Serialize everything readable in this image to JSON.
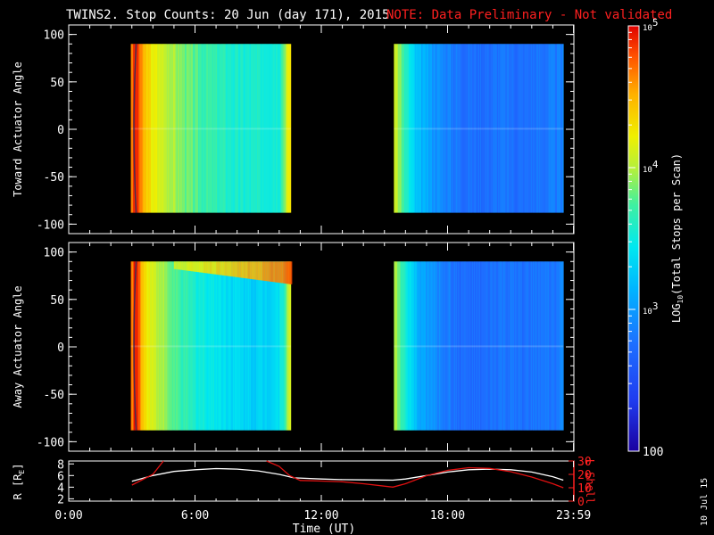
{
  "title": "TWINS2. Stop Counts: 20 Jun (day 171), 2015",
  "note": "NOTE: Data Preliminary - Not validated",
  "date_stamp": "10 Jul 15",
  "colors": {
    "background": "#000000",
    "axes": "#ffffff",
    "note": "#ff2020",
    "lshell": "#e01010",
    "r_line": "#ffffff"
  },
  "chart_data": [
    {
      "type": "heatmap",
      "name": "toward",
      "ylabel": "Toward Actuator Angle",
      "xlim_hours": [
        0,
        24
      ],
      "ylim": [
        -110,
        110
      ],
      "yticks": [
        100,
        50,
        0,
        -50,
        -100
      ],
      "angle_range": [
        -88,
        90
      ],
      "data_blocks_hours": [
        [
          2.95,
          10.55
        ],
        [
          15.45,
          23.5
        ]
      ],
      "color_log10": [
        [
          3.0,
          4.7
        ],
        [
          3.12,
          4.95
        ],
        [
          3.25,
          4.85
        ],
        [
          3.5,
          4.5
        ],
        [
          4.0,
          4.2
        ],
        [
          5.0,
          3.95
        ],
        [
          6.0,
          3.75
        ],
        [
          7.0,
          3.65
        ],
        [
          8.0,
          3.55
        ],
        [
          9.0,
          3.55
        ],
        [
          10.0,
          3.6
        ],
        [
          10.5,
          4.3
        ],
        [
          15.5,
          4.1
        ],
        [
          16.0,
          3.6
        ],
        [
          16.5,
          3.2
        ],
        [
          17.5,
          2.95
        ],
        [
          18.5,
          2.8
        ],
        [
          19.5,
          2.75
        ],
        [
          20.5,
          2.8
        ],
        [
          21.5,
          2.75
        ],
        [
          22.5,
          2.8
        ],
        [
          23.5,
          2.85
        ]
      ]
    },
    {
      "type": "heatmap",
      "name": "away",
      "ylabel": "Away Actuator Angle",
      "xlim_hours": [
        0,
        24
      ],
      "ylim": [
        -110,
        110
      ],
      "yticks": [
        100,
        50,
        0,
        -50,
        -100
      ],
      "angle_range": [
        -88,
        90
      ],
      "data_blocks_hours": [
        [
          2.95,
          10.55
        ],
        [
          15.45,
          23.5
        ]
      ],
      "color_log10": [
        [
          3.0,
          4.7
        ],
        [
          3.12,
          4.95
        ],
        [
          3.25,
          4.85
        ],
        [
          3.5,
          4.4
        ],
        [
          4.0,
          4.1
        ],
        [
          5.0,
          3.75
        ],
        [
          6.0,
          3.55
        ],
        [
          7.0,
          3.45
        ],
        [
          8.0,
          3.35
        ],
        [
          9.0,
          3.3
        ],
        [
          10.0,
          3.4
        ],
        [
          10.5,
          4.1
        ],
        [
          15.5,
          4.0
        ],
        [
          16.0,
          3.5
        ],
        [
          16.5,
          3.15
        ],
        [
          17.5,
          2.9
        ],
        [
          18.5,
          2.75
        ],
        [
          19.5,
          2.7
        ],
        [
          20.5,
          2.8
        ],
        [
          21.5,
          2.75
        ],
        [
          22.5,
          2.8
        ],
        [
          23.5,
          2.85
        ]
      ],
      "enhancement": {
        "hours": [
          5.0,
          10.5
        ],
        "angle": [
          58,
          90
        ],
        "log10_peak": 4.75
      }
    },
    {
      "type": "line",
      "name": "orbit",
      "xlabel": "Time (UT)",
      "xlim_hours": [
        0,
        24
      ],
      "xticks": [
        "0:00",
        "6:00",
        "12:00",
        "18:00",
        "23:59"
      ],
      "xtick_hours": [
        0,
        6,
        12,
        18,
        23.983
      ],
      "left_axis": {
        "label": "R [R",
        "label_sub": "E",
        "label_end": "]",
        "ylim": [
          1.6,
          8.5
        ],
        "yticks": [
          "8",
          "6",
          "4",
          "2"
        ],
        "ytick_values": [
          8,
          6,
          4,
          2
        ]
      },
      "right_axis": {
        "label": "L Shell",
        "ylim": [
          0,
          30
        ],
        "yticks": [
          "30",
          "20",
          "10",
          "0"
        ],
        "ytick_values": [
          30,
          20,
          10,
          0
        ]
      },
      "series": [
        {
          "axis": "left",
          "x": [
            3,
            4,
            5,
            6,
            7,
            8,
            9,
            10,
            10.7,
            12,
            13,
            14,
            15.4,
            16,
            17,
            18,
            19,
            20,
            21,
            22,
            23,
            23.5
          ],
          "y": [
            5.0,
            6.0,
            6.7,
            7.0,
            7.2,
            7.1,
            6.8,
            6.2,
            5.6,
            5.4,
            5.3,
            5.25,
            5.2,
            5.4,
            6.0,
            6.6,
            7.0,
            7.1,
            7.0,
            6.6,
            5.8,
            5.2
          ]
        },
        {
          "axis": "right",
          "x": [
            3,
            4,
            4.3,
            4.5
          ],
          "y": [
            12,
            20,
            26,
            31
          ],
          "segment": 1
        },
        {
          "axis": "right",
          "x": [
            9.4,
            10,
            10.5,
            11,
            12,
            13,
            14,
            15.4,
            16,
            17,
            18,
            19,
            20,
            21,
            22,
            23,
            23.5
          ],
          "y": [
            31,
            26,
            19,
            15.5,
            15,
            14.5,
            13,
            10.5,
            13,
            19,
            23,
            25,
            24.5,
            22,
            18,
            13,
            10
          ],
          "segment": 2
        }
      ]
    },
    {
      "type": "colorbar",
      "label": "LOG",
      "label_sub": "10",
      "label_rest": "(Total Stops per Scan)",
      "scale": "log",
      "range": [
        100,
        100000
      ],
      "ticks": [
        {
          "base": "10",
          "exp": "5",
          "value": 100000
        },
        {
          "base": "10",
          "exp": "4",
          "value": 10000
        },
        {
          "base": "10",
          "exp": "3",
          "value": 1000
        },
        {
          "base": "100",
          "exp": "",
          "value": 100
        }
      ]
    }
  ]
}
